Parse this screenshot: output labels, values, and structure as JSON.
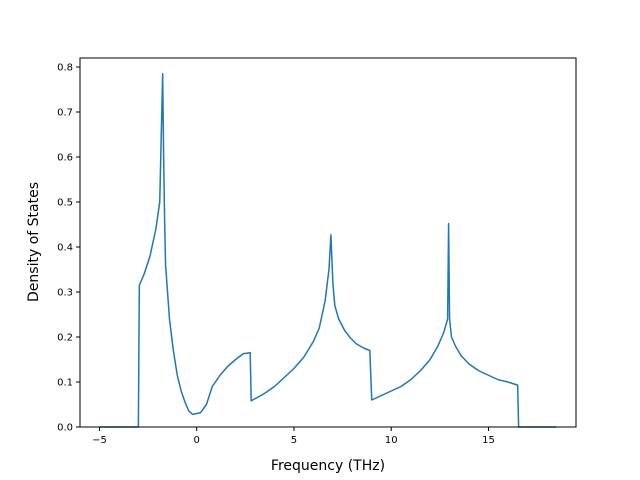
{
  "chart_data": {
    "type": "line",
    "title": "",
    "xlabel": "Frequency (THz)",
    "ylabel": "Density of States",
    "xlim": [
      -6,
      19.5
    ],
    "ylim": [
      0,
      0.82
    ],
    "xticks": [
      -5,
      0,
      5,
      10,
      15
    ],
    "xtick_labels": [
      "−5",
      "0",
      "5",
      "10",
      "15"
    ],
    "yticks": [
      0.0,
      0.1,
      0.2,
      0.3,
      0.4,
      0.5,
      0.6,
      0.7,
      0.8
    ],
    "ytick_labels": [
      "0.0",
      "0.1",
      "0.2",
      "0.3",
      "0.4",
      "0.5",
      "0.6",
      "0.7",
      "0.8"
    ],
    "grid": false,
    "line_color": "#1f77b4",
    "series": [
      {
        "x": [
          -5.0,
          -3.0,
          -2.95,
          -2.7,
          -2.4,
          -2.1,
          -1.9,
          -1.75,
          -1.7,
          -1.65,
          -1.6,
          -1.5,
          -1.4,
          -1.2,
          -1.0,
          -0.8,
          -0.6,
          -0.4,
          -0.2,
          0.0,
          0.2,
          0.5,
          0.8,
          1.2,
          1.6,
          2.0,
          2.4,
          2.75,
          2.8,
          3.5,
          4.0,
          4.5,
          5.0,
          5.5,
          6.0,
          6.3,
          6.6,
          6.8,
          6.9,
          7.0,
          7.1,
          7.3,
          7.6,
          7.9,
          8.2,
          8.6,
          8.9,
          9.0,
          9.5,
          10.0,
          10.5,
          11.0,
          11.5,
          12.0,
          12.4,
          12.7,
          12.9,
          12.95,
          13.0,
          13.1,
          13.3,
          13.6,
          14.0,
          14.5,
          15.0,
          15.5,
          16.0,
          16.5,
          16.55,
          18.5
        ],
        "y": [
          0.0,
          0.0,
          0.315,
          0.34,
          0.38,
          0.44,
          0.5,
          0.785,
          0.6,
          0.46,
          0.36,
          0.3,
          0.24,
          0.17,
          0.115,
          0.08,
          0.055,
          0.035,
          0.028,
          0.03,
          0.032,
          0.05,
          0.09,
          0.115,
          0.135,
          0.15,
          0.163,
          0.165,
          0.058,
          0.075,
          0.09,
          0.11,
          0.13,
          0.155,
          0.19,
          0.22,
          0.28,
          0.35,
          0.427,
          0.32,
          0.27,
          0.24,
          0.215,
          0.198,
          0.185,
          0.175,
          0.17,
          0.06,
          0.07,
          0.08,
          0.09,
          0.105,
          0.125,
          0.15,
          0.18,
          0.21,
          0.24,
          0.452,
          0.24,
          0.2,
          0.18,
          0.158,
          0.14,
          0.125,
          0.115,
          0.105,
          0.1,
          0.093,
          0.0,
          0.0
        ]
      }
    ]
  }
}
